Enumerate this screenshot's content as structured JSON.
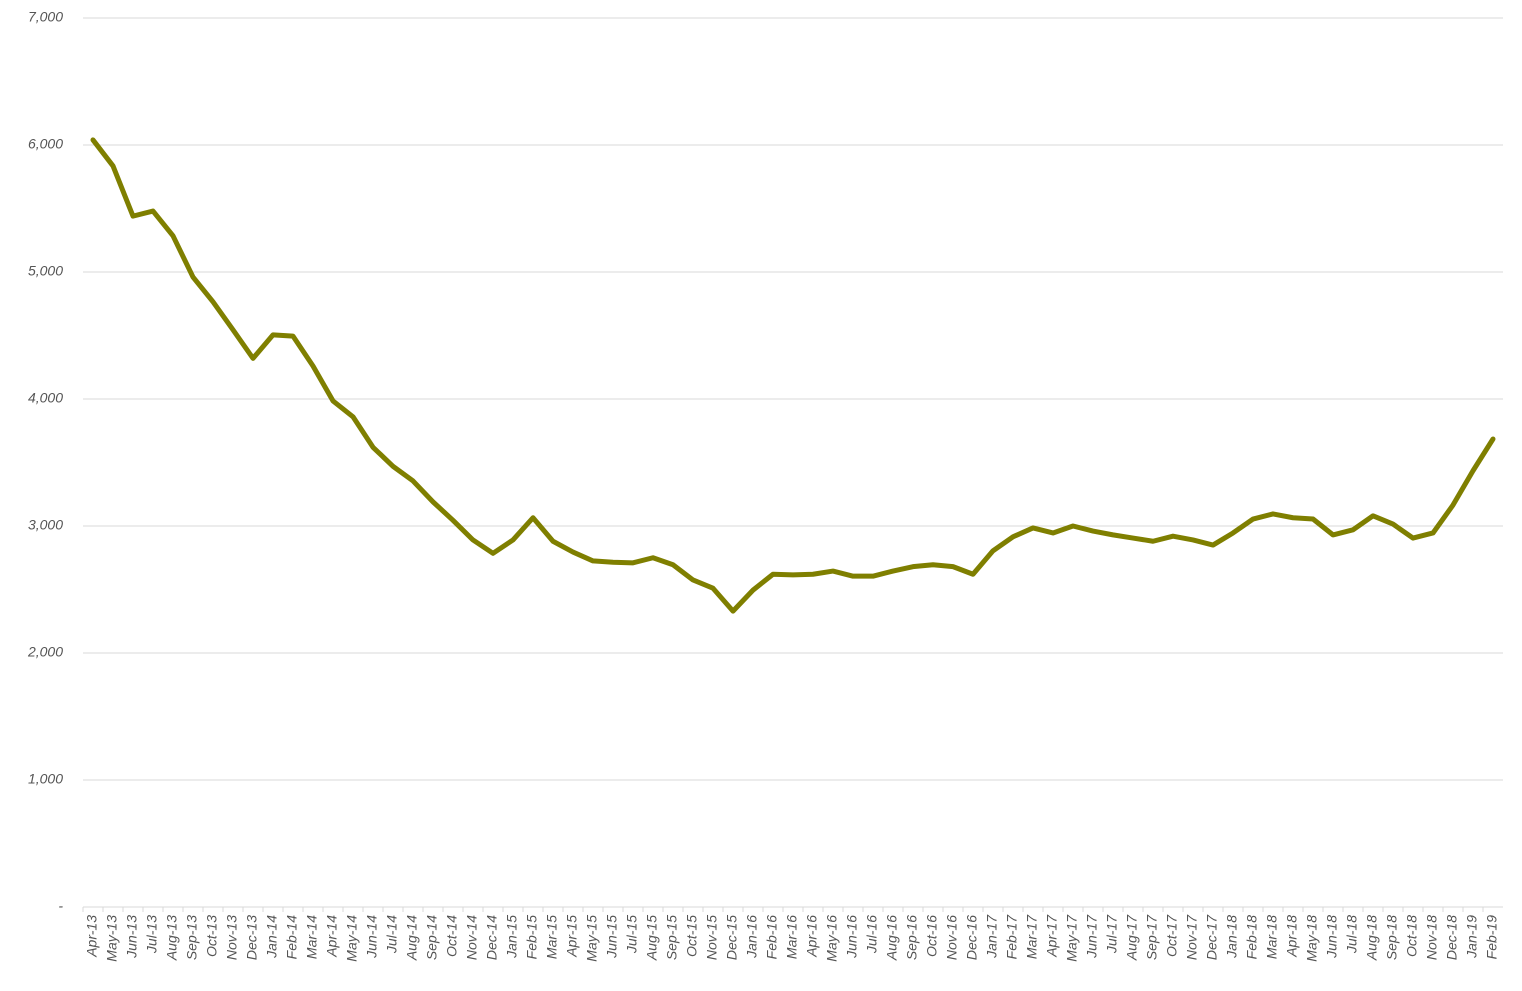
{
  "chart_data": {
    "type": "line",
    "categories": [
      "Apr-13",
      "May-13",
      "Jun-13",
      "Jul-13",
      "Aug-13",
      "Sep-13",
      "Oct-13",
      "Nov-13",
      "Dec-13",
      "Jan-14",
      "Feb-14",
      "Mar-14",
      "Apr-14",
      "May-14",
      "Jun-14",
      "Jul-14",
      "Aug-14",
      "Sep-14",
      "Oct-14",
      "Nov-14",
      "Dec-14",
      "Jan-15",
      "Feb-15",
      "Mar-15",
      "Apr-15",
      "May-15",
      "Jun-15",
      "Jul-15",
      "Aug-15",
      "Sep-15",
      "Oct-15",
      "Nov-15",
      "Dec-15",
      "Jan-16",
      "Feb-16",
      "Mar-16",
      "Apr-16",
      "May-16",
      "Jun-16",
      "Jul-16",
      "Aug-16",
      "Sep-16",
      "Oct-16",
      "Nov-16",
      "Dec-16",
      "Jan-17",
      "Feb-17",
      "Mar-17",
      "Apr-17",
      "May-17",
      "Jun-17",
      "Jul-17",
      "Aug-17",
      "Sep-17",
      "Oct-17",
      "Nov-17",
      "Dec-17",
      "Jan-18",
      "Feb-18",
      "Mar-18",
      "Apr-18",
      "May-18",
      "Jun-18",
      "Jul-18",
      "Aug-18",
      "Sep-18",
      "Oct-18",
      "Nov-18",
      "Dec-18",
      "Jan-19",
      "Feb-19"
    ],
    "values": [
      6040,
      5835,
      5440,
      5480,
      5285,
      4960,
      4765,
      4545,
      4320,
      4505,
      4495,
      4260,
      3985,
      3860,
      3620,
      3470,
      3355,
      3190,
      3045,
      2890,
      2785,
      2890,
      3065,
      2880,
      2795,
      2725,
      2715,
      2710,
      2750,
      2695,
      2575,
      2510,
      2330,
      2495,
      2620,
      2615,
      2620,
      2645,
      2605,
      2605,
      2645,
      2680,
      2695,
      2680,
      2620,
      2805,
      2915,
      2985,
      2945,
      3000,
      2960,
      2930,
      2905,
      2880,
      2920,
      2890,
      2850,
      2945,
      3055,
      3095,
      3065,
      3055,
      2930,
      2970,
      3080,
      3015,
      2905,
      2945,
      3165,
      3435,
      3685
    ],
    "color": "#7f7f00",
    "ylim": [
      0,
      7000
    ],
    "yticks": [
      {
        "value": 0,
        "label": "-"
      },
      {
        "value": 1000,
        "label": "1,000"
      },
      {
        "value": 2000,
        "label": "2,000"
      },
      {
        "value": 3000,
        "label": "3,000"
      },
      {
        "value": 4000,
        "label": "4,000"
      },
      {
        "value": 5000,
        "label": "5,000"
      },
      {
        "value": 6000,
        "label": "6,000"
      },
      {
        "value": 7000,
        "label": "7,000"
      }
    ],
    "grid": true
  }
}
